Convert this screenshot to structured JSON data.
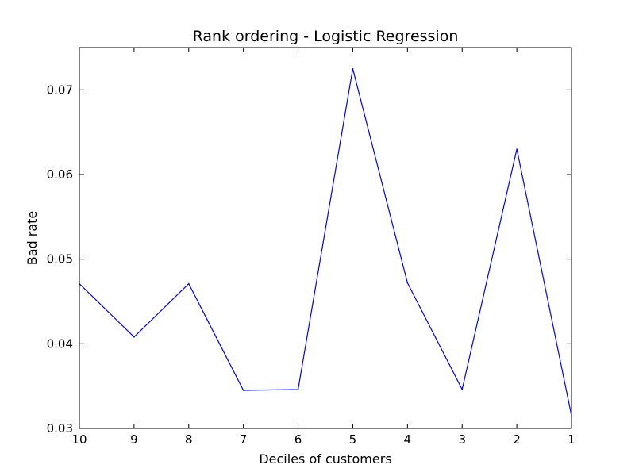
{
  "chart_data": {
    "type": "line",
    "title": "Rank ordering - Logistic Regression",
    "xlabel": "Deciles of customers",
    "ylabel": "Bad rate",
    "x": [
      "10",
      "9",
      "8",
      "7",
      "6",
      "5",
      "4",
      "3",
      "2",
      "1"
    ],
    "series": [
      {
        "values": [
          0.0471,
          0.0408,
          0.0471,
          0.0345,
          0.0346,
          0.0725,
          0.0472,
          0.0346,
          0.063,
          0.0315
        ],
        "color": "#0000ff"
      }
    ],
    "ylim": [
      0.03,
      0.075
    ],
    "yticks": [
      0.03,
      0.04,
      0.05,
      0.06,
      0.07
    ],
    "ytick_labels": [
      "0.03",
      "0.04",
      "0.05",
      "0.06",
      "0.07"
    ],
    "grid": false,
    "legend": "none"
  }
}
